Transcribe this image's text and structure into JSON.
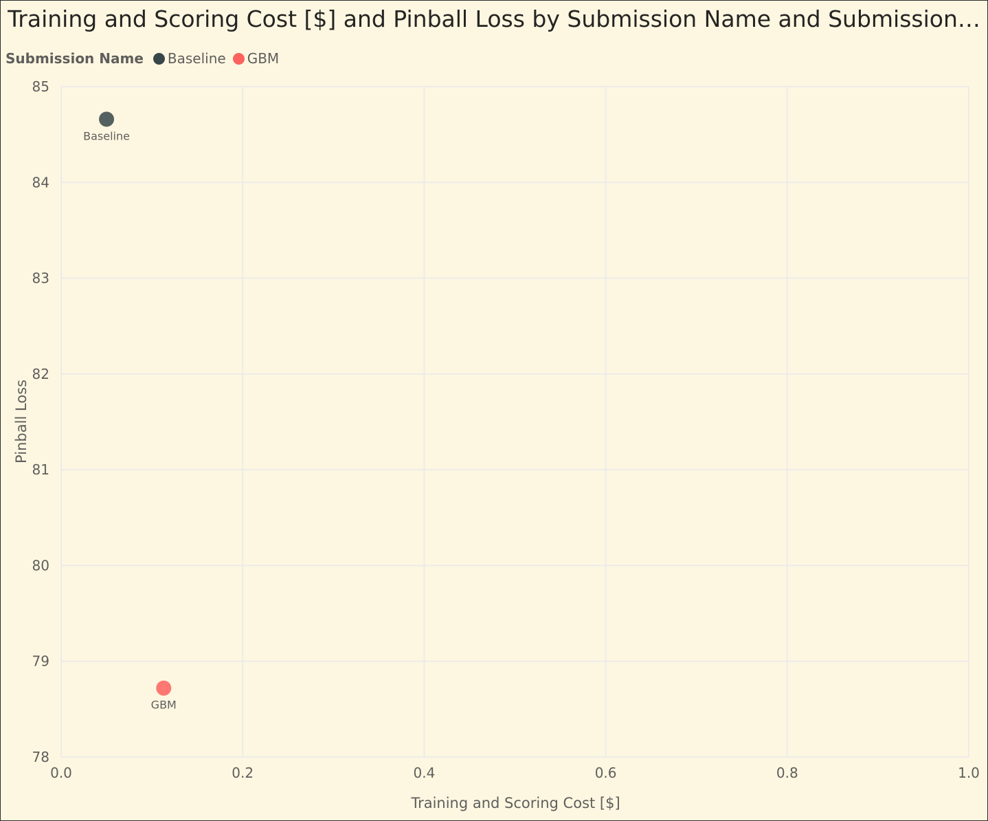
{
  "title": "Training and Scoring Cost [$] and Pinball Loss by Submission Name and Submission N...",
  "legend": {
    "title": "Submission Name",
    "items": [
      {
        "label": "Baseline",
        "color": "#374649"
      },
      {
        "label": "GBM",
        "color": "#FD625E"
      }
    ]
  },
  "chart_data": {
    "type": "scatter",
    "title": "Training and Scoring Cost [$] and Pinball Loss by Submission Name and Submission N...",
    "xlabel": "Training and Scoring Cost [$]",
    "ylabel": "Pinball Loss",
    "xlim": [
      0.0,
      1.0
    ],
    "ylim": [
      78,
      85
    ],
    "xticks": [
      "0.0",
      "0.2",
      "0.4",
      "0.6",
      "0.8",
      "1.0"
    ],
    "xtick_values": [
      0.0,
      0.2,
      0.4,
      0.6,
      0.8,
      1.0
    ],
    "yticks": [
      "78",
      "79",
      "80",
      "81",
      "82",
      "83",
      "84",
      "85"
    ],
    "ytick_values": [
      78,
      79,
      80,
      81,
      82,
      83,
      84,
      85
    ],
    "grid": true,
    "legend_placement": "top-left",
    "series": [
      {
        "name": "Baseline",
        "color": "#374649",
        "points": [
          {
            "x": 0.05,
            "y": 84.66,
            "label": "Baseline"
          }
        ]
      },
      {
        "name": "GBM",
        "color": "#FD625E",
        "points": [
          {
            "x": 0.113,
            "y": 78.72,
            "label": "GBM"
          }
        ]
      }
    ]
  }
}
